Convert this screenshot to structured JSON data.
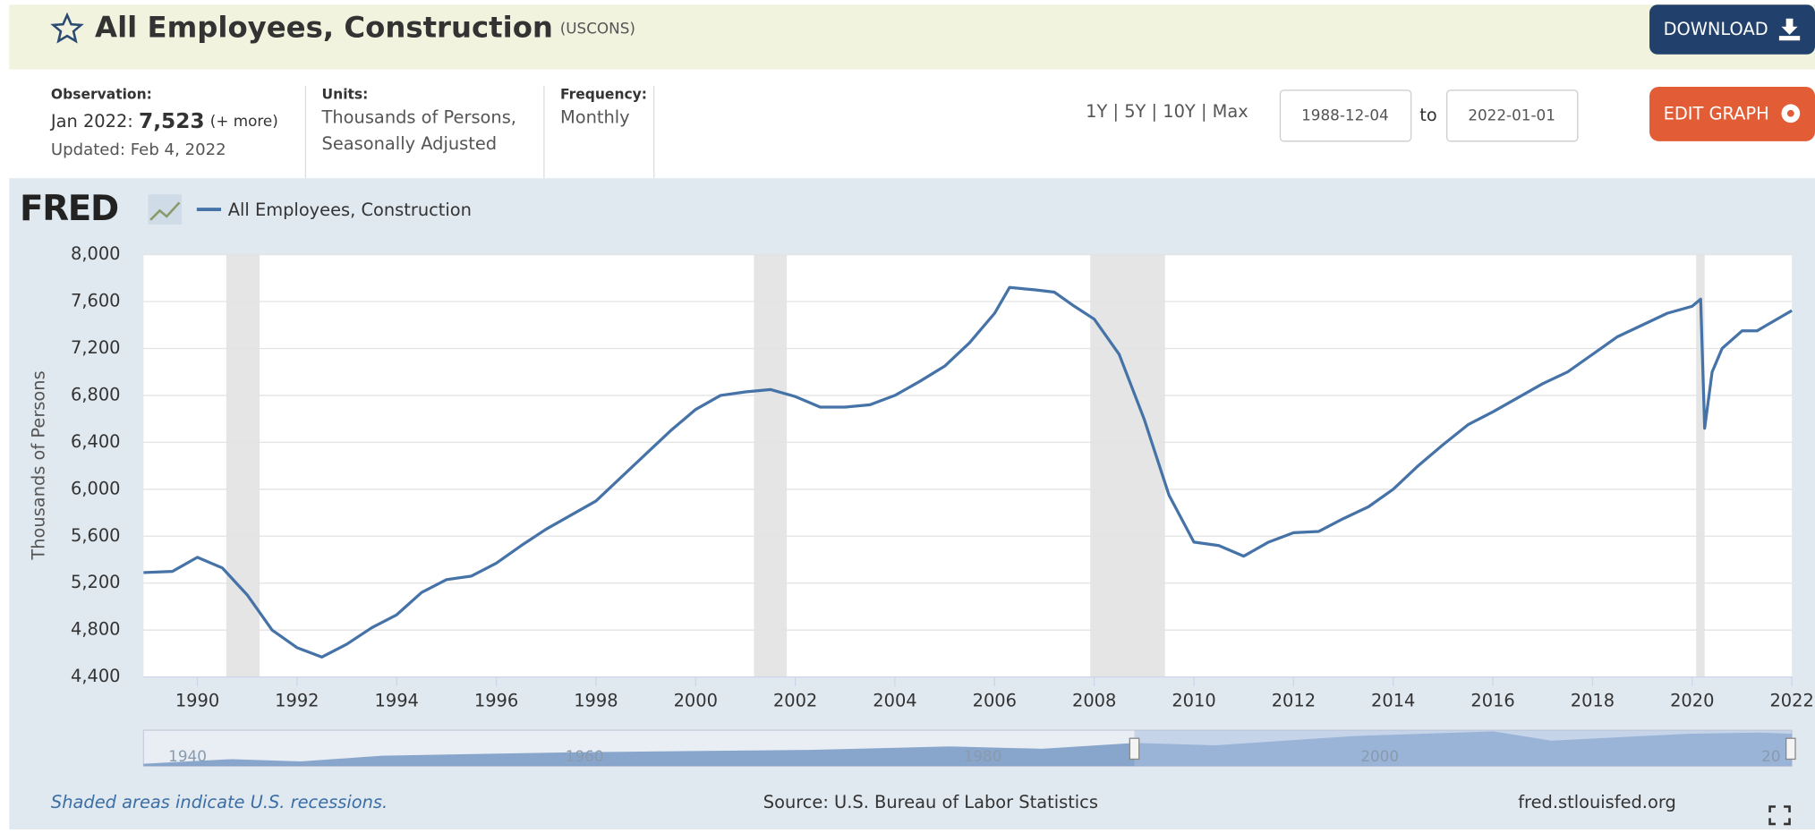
{
  "header": {
    "title": "All Employees, Construction",
    "series_id": "(USCONS)",
    "download": "DOWNLOAD"
  },
  "info": {
    "observation_label": "Observation:",
    "observation_date": "Jan 2022:",
    "observation_value": "7,523",
    "more": "(+ more)",
    "updated": "Updated: Feb 4, 2022",
    "units_label": "Units:",
    "units": [
      "Thousands of Persons,",
      "Seasonally Adjusted"
    ],
    "frequency_label": "Frequency:",
    "frequency": "Monthly",
    "ranges": "1Y | 5Y | 10Y | Max",
    "start_date": "1988-12-04",
    "to": "to",
    "end_date": "2022-01-01",
    "edit_graph": "EDIT GRAPH"
  },
  "logo": "FRED",
  "chart_data": {
    "type": "line",
    "y_label": "Thousands of Persons",
    "x": [
      1988.92,
      1989.5,
      1990.0,
      1990.5,
      1991.0,
      1991.5,
      1992.0,
      1992.5,
      1993.0,
      1993.5,
      1994.0,
      1994.5,
      1995.0,
      1995.5,
      1996.0,
      1996.5,
      1997.0,
      1997.5,
      1998.0,
      1998.5,
      1999.0,
      1999.5,
      2000.0,
      2000.5,
      2001.0,
      2001.5,
      2002.0,
      2002.5,
      2003.0,
      2003.5,
      2004.0,
      2004.5,
      2005.0,
      2005.5,
      2006.0,
      2006.3,
      2006.8,
      2007.2,
      2007.6,
      2008.0,
      2008.5,
      2009.0,
      2009.5,
      2010.0,
      2010.5,
      2011.0,
      2011.5,
      2012.0,
      2012.5,
      2013.0,
      2013.5,
      2014.0,
      2014.5,
      2015.0,
      2015.5,
      2016.0,
      2016.5,
      2017.0,
      2017.5,
      2018.0,
      2018.5,
      2019.0,
      2019.5,
      2020.0,
      2020.17,
      2020.25,
      2020.4,
      2020.6,
      2021.0,
      2021.3,
      2021.5,
      2022.0
    ],
    "series": [
      {
        "name": "All Employees, Construction",
        "color": "#4572a7",
        "values": [
          5290,
          5300,
          5420,
          5330,
          5100,
          4800,
          4650,
          4570,
          4680,
          4820,
          4930,
          5120,
          5230,
          5260,
          5370,
          5520,
          5660,
          5780,
          5900,
          6100,
          6300,
          6500,
          6680,
          6800,
          6830,
          6850,
          6790,
          6700,
          6700,
          6720,
          6800,
          6920,
          7050,
          7250,
          7500,
          7720,
          7700,
          7680,
          7560,
          7450,
          7150,
          6600,
          5950,
          5550,
          5520,
          5430,
          5550,
          5630,
          5640,
          5750,
          5850,
          6000,
          6200,
          6380,
          6550,
          6660,
          6780,
          6900,
          7000,
          7150,
          7300,
          7400,
          7500,
          7560,
          7620,
          6520,
          7000,
          7200,
          7350,
          7350,
          7400,
          7523
        ]
      }
    ],
    "recessions": [
      [
        1990.58,
        1991.25
      ],
      [
        2001.17,
        2001.83
      ],
      [
        2007.92,
        2009.42
      ],
      [
        2020.08,
        2020.25
      ]
    ],
    "xlim": [
      1988.92,
      2022.0
    ],
    "ylim": [
      4400,
      8000
    ],
    "xticks": [
      1990,
      1992,
      1994,
      1996,
      1998,
      2000,
      2002,
      2004,
      2006,
      2008,
      2010,
      2012,
      2014,
      2016,
      2018,
      2020,
      2022
    ],
    "yticks": [
      {
        "value": 4400,
        "label": "4,400"
      },
      {
        "value": 4800,
        "label": "4,800"
      },
      {
        "value": 5200,
        "label": "5,200"
      },
      {
        "value": 5600,
        "label": "5,600"
      },
      {
        "value": 6000,
        "label": "6,000"
      },
      {
        "value": 6400,
        "label": "6,400"
      },
      {
        "value": 6800,
        "label": "6,800"
      },
      {
        "value": 7200,
        "label": "7,200"
      },
      {
        "value": 7600,
        "label": "7,600"
      },
      {
        "value": 8000,
        "label": "8,000"
      }
    ],
    "grid": true,
    "navigator_labels": [
      "1940",
      "1960",
      "1980",
      "2000",
      "20"
    ]
  },
  "footer": {
    "note": "Shaded areas indicate U.S. recessions.",
    "source": "Source: U.S. Bureau of Labor Statistics",
    "site": "fred.stlouisfed.org"
  }
}
